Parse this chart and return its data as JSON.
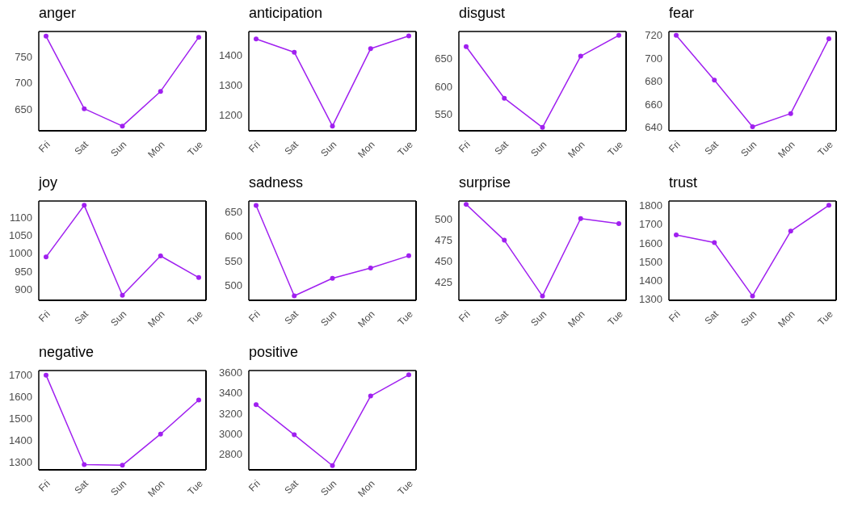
{
  "chart_data": [
    {
      "type": "line",
      "title": "anger",
      "categories": [
        "Fri",
        "Sat",
        "Sun",
        "Mon",
        "Tue"
      ],
      "values": [
        789,
        651,
        618,
        684,
        787
      ],
      "color": "#a020f0",
      "marker": "circle",
      "ylim": [
        609,
        798
      ],
      "yticks": [
        650,
        700,
        750
      ]
    },
    {
      "type": "line",
      "title": "anticipation",
      "categories": [
        "Fri",
        "Sat",
        "Sun",
        "Mon",
        "Tue"
      ],
      "values": [
        1456,
        1411,
        1162,
        1423,
        1466
      ],
      "color": "#a020f0",
      "marker": "circle",
      "ylim": [
        1146,
        1481
      ],
      "yticks": [
        1200,
        1300,
        1400
      ]
    },
    {
      "type": "line",
      "title": "disgust",
      "categories": [
        "Fri",
        "Sat",
        "Sun",
        "Mon",
        "Tue"
      ],
      "values": [
        671,
        579,
        527,
        654,
        691
      ],
      "color": "#a020f0",
      "marker": "circle",
      "ylim": [
        521,
        698
      ],
      "yticks": [
        550,
        600,
        650
      ]
    },
    {
      "type": "line",
      "title": "fear",
      "categories": [
        "Fri",
        "Sat",
        "Sun",
        "Mon",
        "Tue"
      ],
      "values": [
        720,
        681,
        640.5,
        652,
        717
      ],
      "color": "#a020f0",
      "marker": "circle",
      "ylim": [
        637,
        723.4
      ],
      "yticks": [
        640,
        660,
        680,
        700,
        720
      ]
    },
    {
      "type": "line",
      "title": "joy",
      "categories": [
        "Fri",
        "Sat",
        "Sun",
        "Mon",
        "Tue"
      ],
      "values": [
        990,
        1133,
        884,
        993,
        933
      ],
      "color": "#a020f0",
      "marker": "circle",
      "ylim": [
        870,
        1145
      ],
      "yticks": [
        900,
        950,
        1000,
        1050,
        1100
      ]
    },
    {
      "type": "line",
      "title": "sadness",
      "categories": [
        "Fri",
        "Sat",
        "Sun",
        "Mon",
        "Tue"
      ],
      "values": [
        663,
        478,
        514,
        535,
        560
      ],
      "color": "#a020f0",
      "marker": "circle",
      "ylim": [
        469,
        672
      ],
      "yticks": [
        500,
        550,
        600,
        650
      ]
    },
    {
      "type": "line",
      "title": "surprise",
      "categories": [
        "Fri",
        "Sat",
        "Sun",
        "Mon",
        "Tue"
      ],
      "values": [
        518,
        475,
        408,
        501,
        495
      ],
      "color": "#a020f0",
      "marker": "circle",
      "ylim": [
        403,
        522
      ],
      "yticks": [
        425,
        450,
        475,
        500
      ]
    },
    {
      "type": "line",
      "title": "trust",
      "categories": [
        "Fri",
        "Sat",
        "Sun",
        "Mon",
        "Tue"
      ],
      "values": [
        1643,
        1602,
        1317,
        1663,
        1801
      ],
      "color": "#a020f0",
      "marker": "circle",
      "ylim": [
        1294,
        1824
      ],
      "yticks": [
        1300,
        1400,
        1500,
        1600,
        1700,
        1800
      ]
    },
    {
      "type": "line",
      "title": "negative",
      "categories": [
        "Fri",
        "Sat",
        "Sun",
        "Mon",
        "Tue"
      ],
      "values": [
        1700,
        1287,
        1284,
        1428,
        1585
      ],
      "color": "#a020f0",
      "marker": "circle",
      "ylim": [
        1263,
        1721
      ],
      "yticks": [
        1300,
        1400,
        1500,
        1600,
        1700
      ]
    },
    {
      "type": "line",
      "title": "positive",
      "categories": [
        "Fri",
        "Sat",
        "Sun",
        "Mon",
        "Tue"
      ],
      "values": [
        3286,
        2988,
        2685,
        3370,
        3579
      ],
      "color": "#a020f0",
      "marker": "circle",
      "ylim": [
        2643,
        3621
      ],
      "yticks": [
        2800,
        3000,
        3200,
        3400,
        3600
      ]
    }
  ]
}
